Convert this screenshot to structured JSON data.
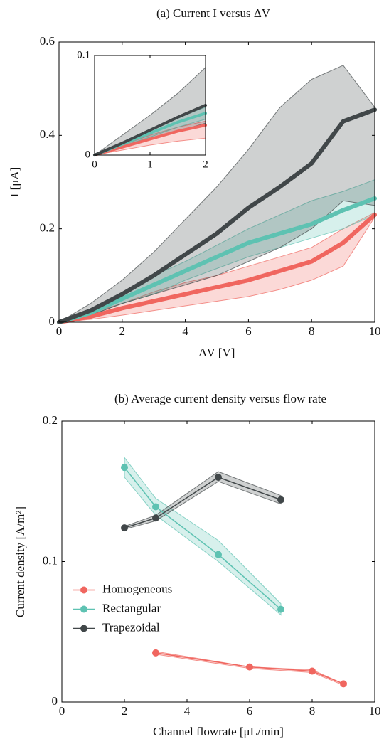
{
  "chart_data": [
    {
      "type": "line",
      "title": "(a) Current I versus ΔV",
      "xlabel": "ΔV [V]",
      "ylabel": "I [μA]",
      "xlim": [
        0,
        10
      ],
      "ylim": [
        0,
        0.6
      ],
      "xticks": [
        0,
        2,
        4,
        6,
        8,
        10
      ],
      "yticks": [
        0,
        0.2,
        0.4,
        0.6
      ],
      "x": [
        0,
        1,
        2,
        3,
        4,
        5,
        6,
        7,
        8,
        9,
        10
      ],
      "series": [
        {
          "color": "#f0665f",
          "values": [
            0,
            0.012,
            0.03,
            0.045,
            0.06,
            0.075,
            0.09,
            0.11,
            0.13,
            0.17,
            0.23
          ],
          "upper": [
            0,
            0.02,
            0.04,
            0.065,
            0.085,
            0.1,
            0.12,
            0.14,
            0.16,
            0.2,
            0.235
          ],
          "lower": [
            0,
            0.006,
            0.015,
            0.025,
            0.035,
            0.045,
            0.055,
            0.07,
            0.09,
            0.12,
            0.225
          ]
        },
        {
          "color": "#5ec2b2",
          "values": [
            0,
            0.02,
            0.05,
            0.08,
            0.11,
            0.14,
            0.17,
            0.19,
            0.21,
            0.24,
            0.265
          ],
          "upper": [
            0,
            0.025,
            0.06,
            0.1,
            0.13,
            0.165,
            0.2,
            0.23,
            0.26,
            0.28,
            0.305
          ],
          "lower": [
            0,
            0.015,
            0.04,
            0.06,
            0.09,
            0.115,
            0.14,
            0.16,
            0.18,
            0.2,
            0.23
          ]
        },
        {
          "color": "#414749",
          "values": [
            0,
            0.025,
            0.06,
            0.1,
            0.145,
            0.19,
            0.245,
            0.29,
            0.34,
            0.43,
            0.455
          ],
          "upper": [
            0,
            0.04,
            0.09,
            0.15,
            0.22,
            0.29,
            0.37,
            0.46,
            0.52,
            0.55,
            0.46
          ],
          "lower": [
            0,
            0.015,
            0.04,
            0.06,
            0.08,
            0.1,
            0.13,
            0.16,
            0.2,
            0.26,
            0.25
          ]
        }
      ]
    },
    {
      "type": "line",
      "xlim": [
        0,
        2
      ],
      "ylim": [
        0,
        0.1
      ],
      "xticks": [
        0,
        1,
        2
      ],
      "yticks": [
        0,
        0.1
      ],
      "x": [
        0,
        0.5,
        1,
        1.5,
        2
      ],
      "series": [
        {
          "color": "#f0665f",
          "values": [
            0,
            0.008,
            0.016,
            0.024,
            0.03
          ],
          "upper": [
            0,
            0.01,
            0.02,
            0.028,
            0.034
          ],
          "lower": [
            0,
            0.005,
            0.01,
            0.014,
            0.017
          ]
        },
        {
          "color": "#5ec2b2",
          "values": [
            0,
            0.011,
            0.022,
            0.033,
            0.042
          ],
          "upper": [
            0,
            0.013,
            0.026,
            0.038,
            0.048
          ],
          "lower": [
            0,
            0.009,
            0.018,
            0.028,
            0.036
          ]
        },
        {
          "color": "#414749",
          "values": [
            0,
            0.012,
            0.025,
            0.038,
            0.05
          ],
          "upper": [
            0,
            0.02,
            0.04,
            0.062,
            0.088
          ],
          "lower": [
            0,
            0.008,
            0.016,
            0.024,
            0.032
          ]
        }
      ]
    },
    {
      "type": "line",
      "title": "(b) Average current density versus flow rate",
      "xlabel": "Channel flowrate [μL/min]",
      "ylabel": "Current density [A/m²]",
      "xlim": [
        0,
        10
      ],
      "ylim": [
        0,
        0.2
      ],
      "xticks": [
        0,
        2,
        4,
        6,
        8,
        10
      ],
      "yticks": [
        0,
        0.1,
        0.2
      ],
      "legend": "center left",
      "markers": true,
      "series": [
        {
          "name": "Homogeneous",
          "color": "#f0665f",
          "x": [
            3,
            6,
            8,
            9
          ],
          "values": [
            0.035,
            0.025,
            0.022,
            0.013
          ],
          "upper": [
            0.036,
            0.025,
            0.023,
            0.013
          ],
          "lower": [
            0.034,
            0.024,
            0.021,
            0.012
          ]
        },
        {
          "name": "Rectangular",
          "color": "#5ec2b2",
          "x": [
            2,
            3,
            5,
            7
          ],
          "values": [
            0.167,
            0.139,
            0.105,
            0.066
          ],
          "upper": [
            0.174,
            0.145,
            0.115,
            0.07
          ],
          "lower": [
            0.16,
            0.133,
            0.1,
            0.062
          ]
        },
        {
          "name": "Trapezoidal",
          "color": "#414749",
          "x": [
            2,
            3,
            5,
            7
          ],
          "values": [
            0.124,
            0.131,
            0.16,
            0.144
          ],
          "upper": [
            0.125,
            0.133,
            0.164,
            0.147
          ],
          "lower": [
            0.123,
            0.129,
            0.157,
            0.141
          ]
        }
      ]
    }
  ]
}
